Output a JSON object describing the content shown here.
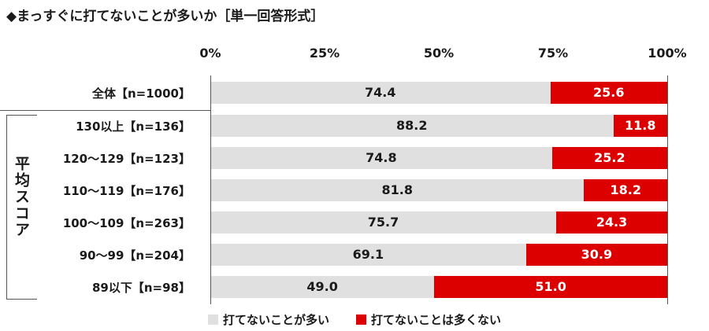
{
  "chart_data": {
    "type": "bar",
    "orientation": "horizontal-stacked-100",
    "title": "◆まっすぐに打てないことが多いか［単一回答形式］",
    "ticks": [
      "0%",
      "25%",
      "50%",
      "75%",
      "100%"
    ],
    "xlim": [
      0,
      100
    ],
    "categories": [
      "全体【n=1000】",
      "130以上【n=136】",
      "120〜129【n=123】",
      "110〜119【n=176】",
      "100〜109【n=263】",
      "90〜99【n=204】",
      "89以下【n=98】"
    ],
    "group_label": "平均スコア",
    "series": [
      {
        "name": "打てないことが多い",
        "color": "#e0e0e0",
        "text_color": "#1a1a1a",
        "values": [
          74.4,
          88.2,
          74.8,
          81.8,
          75.7,
          69.1,
          49.0
        ],
        "labels": [
          "74.4",
          "88.2",
          "74.8",
          "81.8",
          "75.7",
          "69.1",
          "49.0"
        ]
      },
      {
        "name": "打てないことは多くない",
        "color": "#dd0000",
        "text_color": "#ffffff",
        "values": [
          25.6,
          11.8,
          25.2,
          18.2,
          24.3,
          30.9,
          51.0
        ],
        "labels": [
          "25.6",
          "11.8",
          "25.2",
          "18.2",
          "24.3",
          "30.9",
          "51.0"
        ]
      }
    ],
    "legend_position": "bottom"
  }
}
